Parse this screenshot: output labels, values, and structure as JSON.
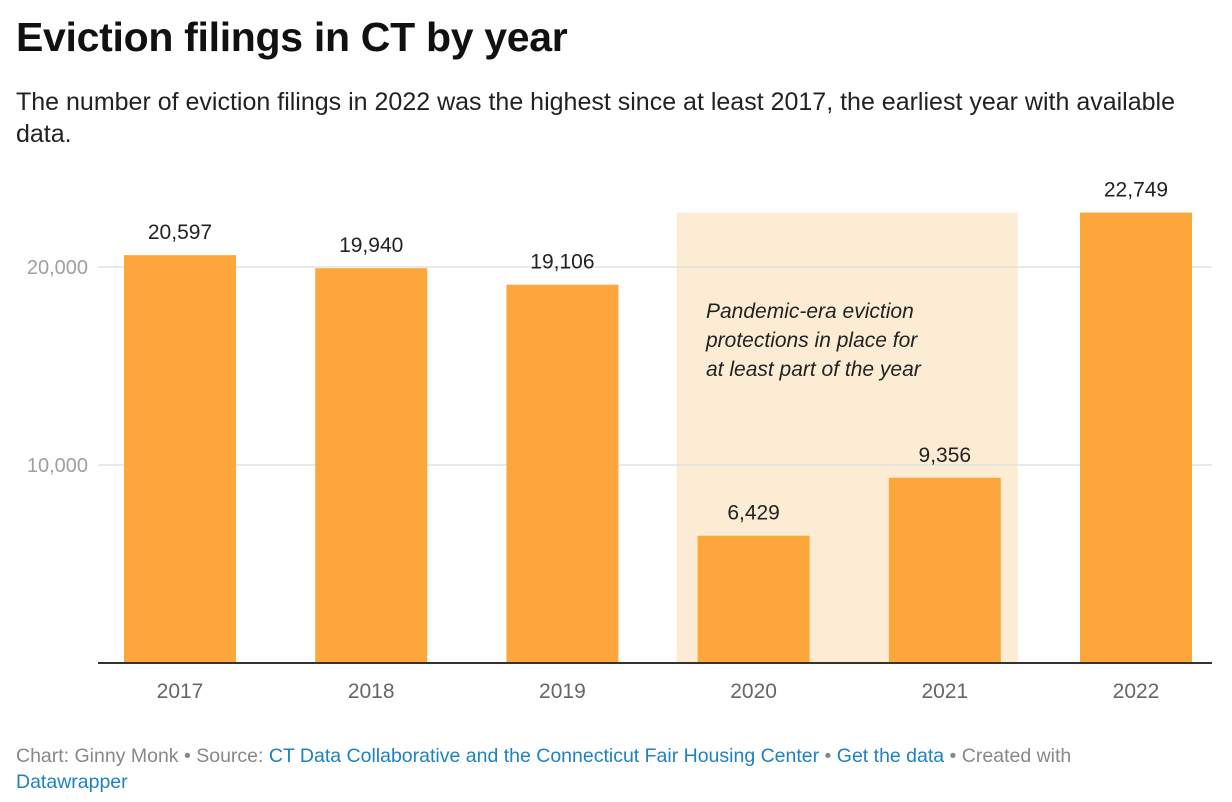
{
  "title": "Eviction filings in CT by year",
  "subtitle": "The number of eviction filings in 2022 was the highest since at least 2017, the earliest year with available data.",
  "chart_data": {
    "type": "bar",
    "categories": [
      "2017",
      "2018",
      "2019",
      "2020",
      "2021",
      "2022"
    ],
    "values": [
      20597,
      19940,
      19106,
      6429,
      9356,
      22749
    ],
    "value_labels": [
      "20,597",
      "19,940",
      "19,106",
      "6,429",
      "9,356",
      "22,749"
    ],
    "yticks": [
      10000,
      20000
    ],
    "ytick_labels": [
      "10,000",
      "20,000"
    ],
    "ylim": [
      0,
      22749
    ],
    "grid": true,
    "bar_color": "#fca63b",
    "highlight": {
      "from": "2020",
      "to": "2021",
      "color": "#fdecd4",
      "annotation": [
        "Pandemic-era eviction",
        "protections in place for",
        "at least part of the year"
      ]
    }
  },
  "footer": {
    "chart_prefix": "Chart: Ginny Monk",
    "source_prefix": "Source:",
    "source_link": "CT Data Collaborative and the Connecticut Fair Housing Center",
    "get_data": "Get the data",
    "created_with": "Created with",
    "datawrapper": "Datawrapper",
    "link_color": "#1d81c2"
  }
}
